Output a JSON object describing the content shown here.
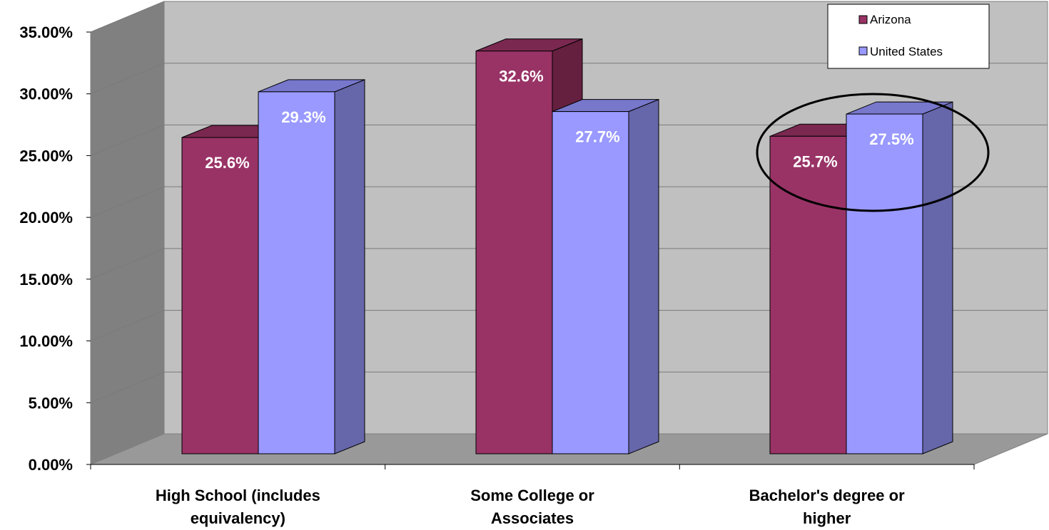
{
  "chart_data": {
    "type": "bar",
    "title": "",
    "xlabel": "",
    "ylabel": "",
    "categories": [
      [
        "High School (includes",
        "equivalency)"
      ],
      [
        "Some College or",
        "Associates"
      ],
      [
        "Bachelor's degree or",
        "higher"
      ]
    ],
    "series": [
      {
        "name": "Arizona",
        "values": [
          25.6,
          32.6,
          25.7
        ],
        "labels": [
          "25.6%",
          "32.6%",
          "25.7%"
        ]
      },
      {
        "name": "United States",
        "values": [
          29.3,
          27.7,
          27.5
        ],
        "labels": [
          "29.3%",
          "27.7%",
          "27.5%"
        ]
      }
    ],
    "yticks": [
      "0.00%",
      "5.00%",
      "10.00%",
      "15.00%",
      "20.00%",
      "25.00%",
      "30.00%",
      "35.00%"
    ],
    "ylim": [
      0,
      35
    ],
    "grid": true,
    "legend": "top-right",
    "colors": {
      "arizona_front": "#993366",
      "arizona_side": "#66203F",
      "arizona_top": "#7A2850",
      "us_front": "#9999FF",
      "us_side": "#6666AA",
      "us_top": "#7777CC",
      "back_wall": "#C0C0C0",
      "side_wall": "#808080",
      "floor": "#999999"
    },
    "annotation": "highlight-ellipse"
  }
}
